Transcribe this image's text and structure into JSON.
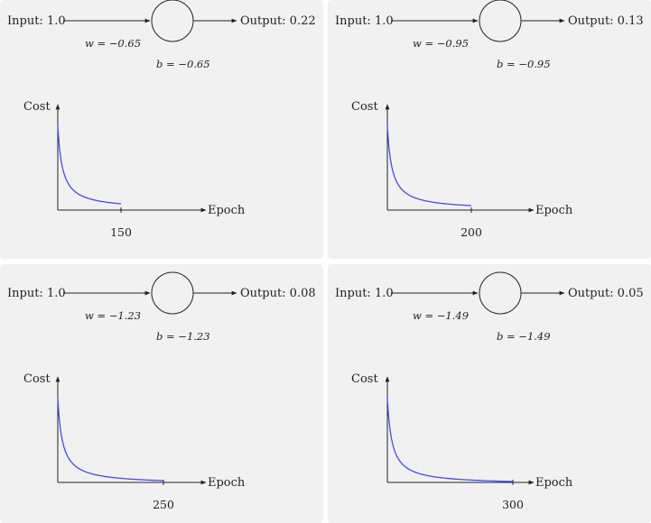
{
  "panels": [
    {
      "input_label": "Input: 1.0",
      "output_label": "Output: 0.22",
      "w_label": "w = −0.65",
      "b_label": "b = −0.65",
      "cost_label": "Cost",
      "epoch_label": "Epoch",
      "epoch_tick": "150",
      "chart_data": {
        "type": "line",
        "epochs": 150,
        "xlabel": "Epoch",
        "ylabel": "Cost"
      }
    },
    {
      "input_label": "Input: 1.0",
      "output_label": "Output: 0.13",
      "w_label": "w = −0.95",
      "b_label": "b = −0.95",
      "cost_label": "Cost",
      "epoch_label": "Epoch",
      "epoch_tick": "200",
      "chart_data": {
        "type": "line",
        "epochs": 200,
        "xlabel": "Epoch",
        "ylabel": "Cost"
      }
    },
    {
      "input_label": "Input: 1.0",
      "output_label": "Output: 0.08",
      "w_label": "w = −1.23",
      "b_label": "b = −1.23",
      "cost_label": "Cost",
      "epoch_label": "Epoch",
      "epoch_tick": "250",
      "chart_data": {
        "type": "line",
        "epochs": 250,
        "xlabel": "Epoch",
        "ylabel": "Cost"
      }
    },
    {
      "input_label": "Input: 1.0",
      "output_label": "Output: 0.05",
      "w_label": "w = −1.49",
      "b_label": "b = −1.49",
      "cost_label": "Cost",
      "epoch_label": "Epoch",
      "epoch_tick": "300",
      "chart_data": {
        "type": "line",
        "epochs": 300,
        "xlabel": "Epoch",
        "ylabel": "Cost"
      }
    }
  ],
  "colors": {
    "curve": "#4a4af0",
    "line": "#222222",
    "panel_bg": "#f1f1f1"
  }
}
